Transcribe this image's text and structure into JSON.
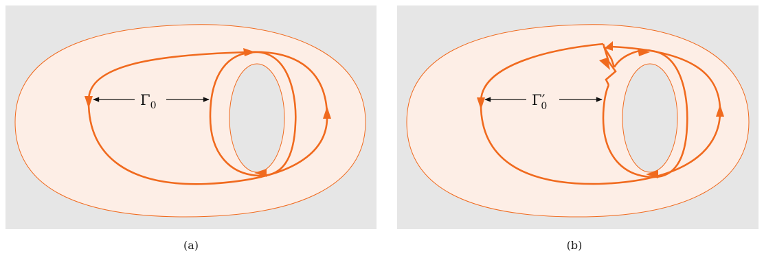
{
  "panels": [
    {
      "id": "a",
      "caption": "(a)",
      "label": {
        "symbol": "Γ",
        "prime": "",
        "subscript": "0"
      }
    },
    {
      "id": "b",
      "caption": "(b)",
      "label": {
        "symbol": "Γ",
        "prime": "′",
        "subscript": "0"
      }
    }
  ],
  "colors": {
    "background": "#e6e6e6",
    "surface_fill": "#fdeee6",
    "curve": "#f06a1e",
    "arrow": "#111111"
  }
}
